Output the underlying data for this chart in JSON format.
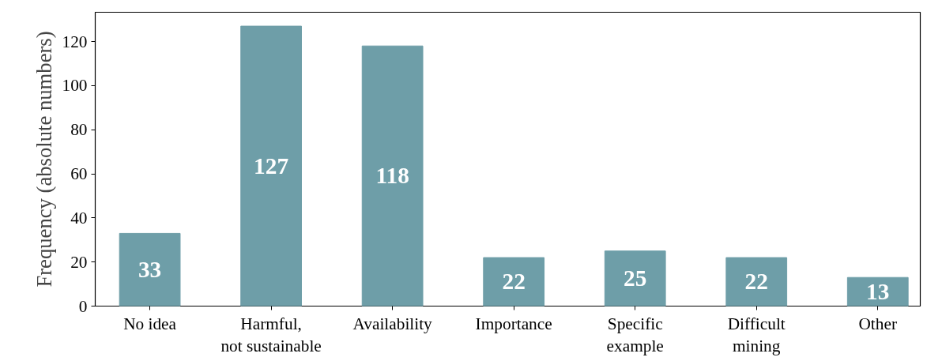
{
  "chart_data": {
    "type": "bar",
    "ylabel": "Frequency (absolute numbers)",
    "categories": [
      "No idea",
      "Harmful,\nnot sustainable",
      "Availability",
      "Importance",
      "Specific\nexample",
      "Difficult\nmining",
      "Other"
    ],
    "values": [
      33,
      127,
      118,
      22,
      25,
      22,
      13
    ],
    "color": "#6e9ea8",
    "ylim": [
      0,
      133.3
    ],
    "yticks": [
      0,
      20,
      40,
      60,
      80,
      100,
      120
    ],
    "data_labels": true,
    "grid": false
  }
}
